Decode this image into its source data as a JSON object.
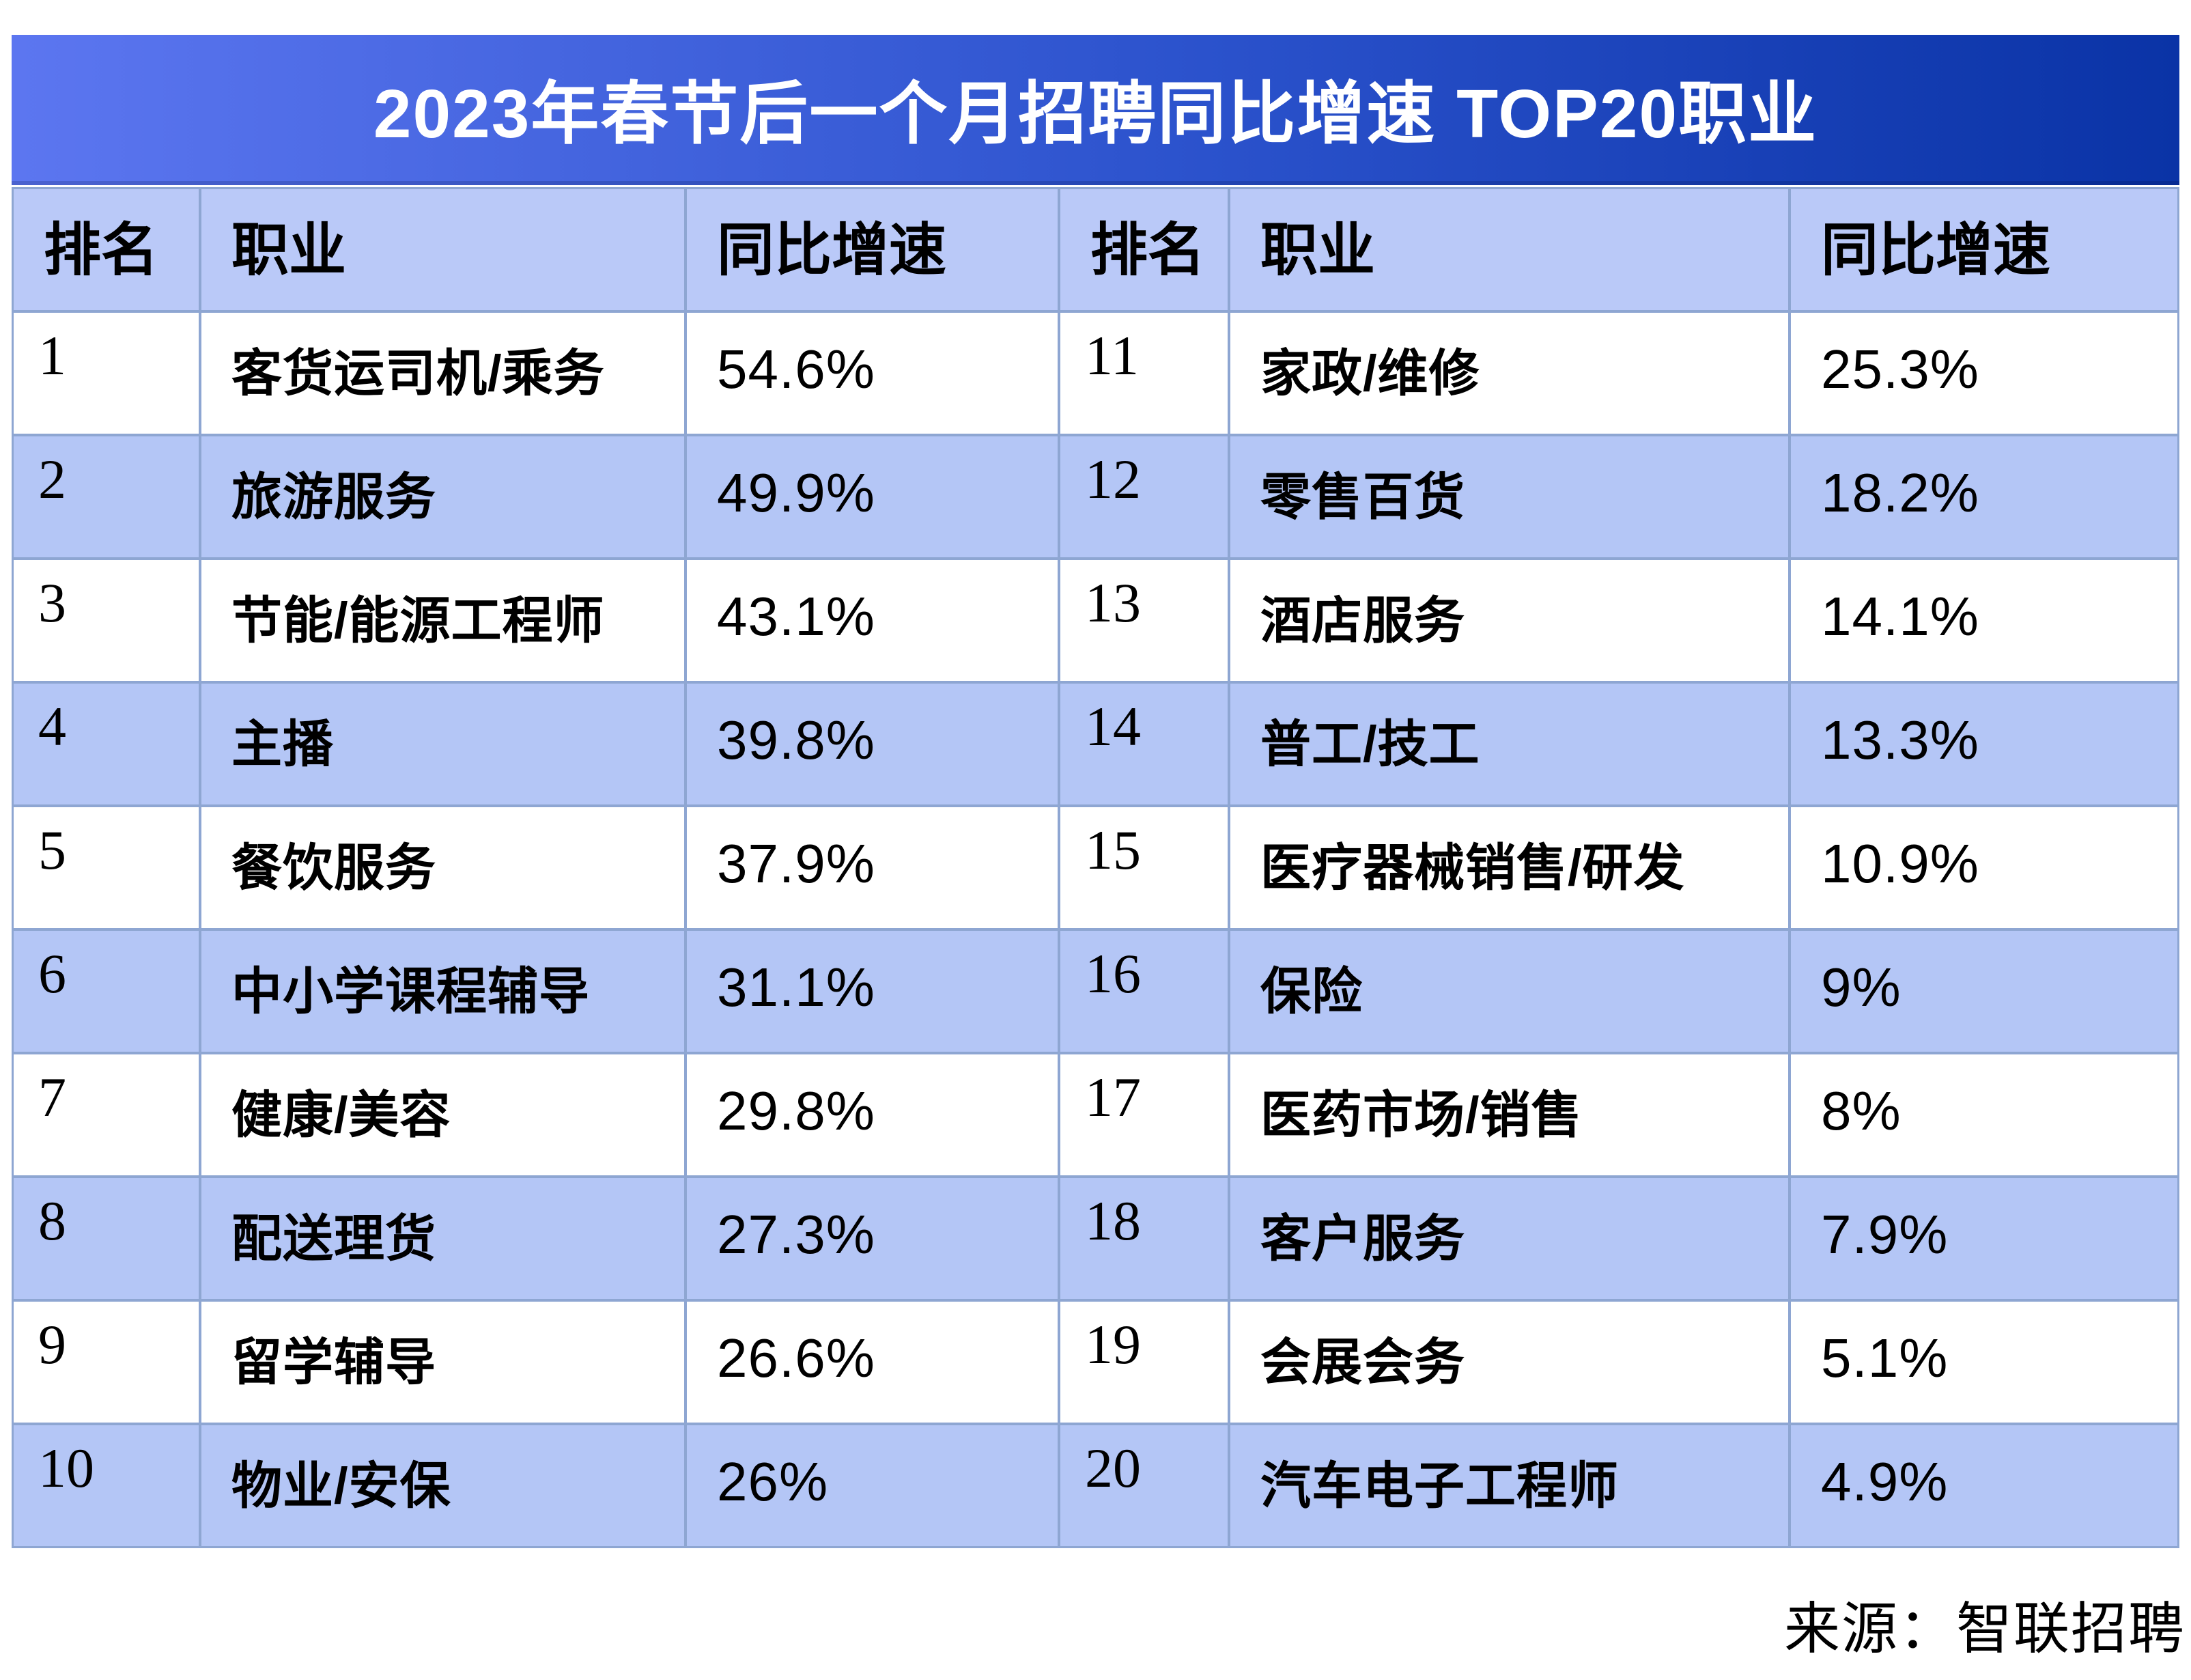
{
  "title": "2023年春节后一个月招聘同比增速 TOP20职业",
  "source": "来源：智联招聘",
  "colors": {
    "title_gradient_left": "#5c76f0",
    "title_gradient_right": "#0a33a6",
    "header_bg": "#bac9f8",
    "row_alt_bg": "#b4c6f6",
    "row_bg": "#ffffff",
    "grid_border": "#8ea6d2",
    "title_text": "#ffffff",
    "body_text": "#000000"
  },
  "table": {
    "columns": [
      "排名",
      "职业",
      "同比增速"
    ],
    "left_rows": [
      {
        "rank": "1",
        "occupation": "客货运司机/乘务",
        "growth": "54.6%"
      },
      {
        "rank": "2",
        "occupation": "旅游服务",
        "growth": "49.9%"
      },
      {
        "rank": "3",
        "occupation": "节能/能源工程师",
        "growth": "43.1%"
      },
      {
        "rank": "4",
        "occupation": "主播",
        "growth": "39.8%"
      },
      {
        "rank": "5",
        "occupation": "餐饮服务",
        "growth": "37.9%"
      },
      {
        "rank": "6",
        "occupation": "中小学课程辅导",
        "growth": "31.1%"
      },
      {
        "rank": "7",
        "occupation": "健康/美容",
        "growth": "29.8%"
      },
      {
        "rank": "8",
        "occupation": "配送理货",
        "growth": "27.3%"
      },
      {
        "rank": "9",
        "occupation": "留学辅导",
        "growth": "26.6%"
      },
      {
        "rank": "10",
        "occupation": "物业/安保",
        "growth": "26%"
      }
    ],
    "right_rows": [
      {
        "rank": "11",
        "occupation": "家政/维修",
        "growth": "25.3%"
      },
      {
        "rank": "12",
        "occupation": "零售百货",
        "growth": "18.2%"
      },
      {
        "rank": "13",
        "occupation": "酒店服务",
        "growth": "14.1%"
      },
      {
        "rank": "14",
        "occupation": "普工/技工",
        "growth": "13.3%"
      },
      {
        "rank": "15",
        "occupation": "医疗器械销售/研发",
        "growth": "10.9%"
      },
      {
        "rank": "16",
        "occupation": "保险",
        "growth": "9%"
      },
      {
        "rank": "17",
        "occupation": "医药市场/销售",
        "growth": "8%"
      },
      {
        "rank": "18",
        "occupation": "客户服务",
        "growth": "7.9%"
      },
      {
        "rank": "19",
        "occupation": "会展会务",
        "growth": "5.1%"
      },
      {
        "rank": "20",
        "occupation": "汽车电子工程师",
        "growth": "4.9%"
      }
    ]
  },
  "chart_data": {
    "type": "table",
    "title": "2023年春节后一个月招聘同比增速 TOP20职业",
    "columns": [
      "排名",
      "职业",
      "同比增速"
    ],
    "unit": "%",
    "rows": [
      [
        1,
        "客货运司机/乘务",
        54.6
      ],
      [
        2,
        "旅游服务",
        49.9
      ],
      [
        3,
        "节能/能源工程师",
        43.1
      ],
      [
        4,
        "主播",
        39.8
      ],
      [
        5,
        "餐饮服务",
        37.9
      ],
      [
        6,
        "中小学课程辅导",
        31.1
      ],
      [
        7,
        "健康/美容",
        29.8
      ],
      [
        8,
        "配送理货",
        27.3
      ],
      [
        9,
        "留学辅导",
        26.6
      ],
      [
        10,
        "物业/安保",
        26.0
      ],
      [
        11,
        "家政/维修",
        25.3
      ],
      [
        12,
        "零售百货",
        18.2
      ],
      [
        13,
        "酒店服务",
        14.1
      ],
      [
        14,
        "普工/技工",
        13.3
      ],
      [
        15,
        "医疗器械销售/研发",
        10.9
      ],
      [
        16,
        "保险",
        9.0
      ],
      [
        17,
        "医药市场/销售",
        8.0
      ],
      [
        18,
        "客户服务",
        7.9
      ],
      [
        19,
        "会展会务",
        5.1
      ],
      [
        20,
        "汽车电子工程师",
        4.9
      ]
    ],
    "source": "来源：智联招聘"
  }
}
